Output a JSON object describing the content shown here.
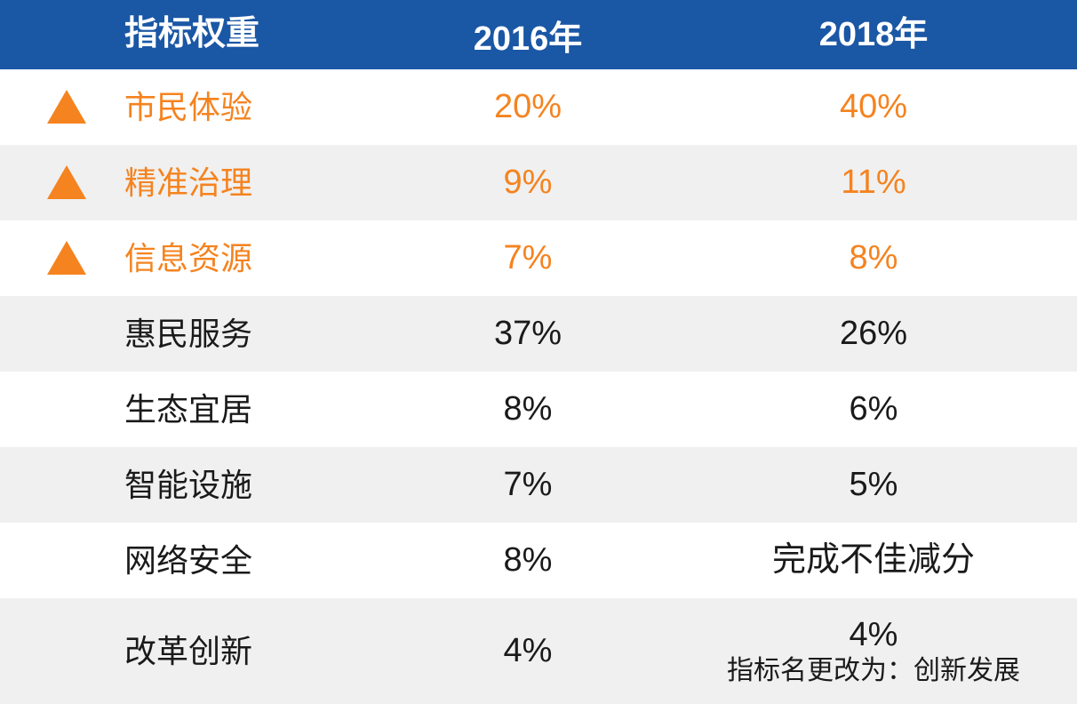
{
  "colors": {
    "header-bg": "#1A57A5",
    "highlight": "#F5831F",
    "row-alt-bg": "#F0F0F0",
    "ink": "#1A1A1A",
    "header-text": "#FFFFFF"
  },
  "table": {
    "headers": [
      "指标权重",
      "2016年",
      "2018年"
    ]
  },
  "icons": {
    "trend_up": "up-triangle-icon"
  },
  "chart_data": {
    "type": "table",
    "title": "指标权重",
    "columns": [
      "指标权重",
      "2016年",
      "2018年"
    ],
    "legend_hint": "橙色上三角 = 权重上升指标",
    "rows": [
      {
        "indicator": "市民体验",
        "y2016": "20%",
        "y2018": "40%",
        "trend_up": true
      },
      {
        "indicator": "精准治理",
        "y2016": "9%",
        "y2018": "11%",
        "trend_up": true
      },
      {
        "indicator": "信息资源",
        "y2016": "7%",
        "y2018": "8%",
        "trend_up": true
      },
      {
        "indicator": "惠民服务",
        "y2016": "37%",
        "y2018": "26%",
        "trend_up": false
      },
      {
        "indicator": "生态宜居",
        "y2016": "8%",
        "y2018": "6%",
        "trend_up": false
      },
      {
        "indicator": "智能设施",
        "y2016": "7%",
        "y2018": "5%",
        "trend_up": false
      },
      {
        "indicator": "网络安全",
        "y2016": "8%",
        "y2018": "完成不佳减分",
        "trend_up": false
      },
      {
        "indicator": "改革创新",
        "y2016": "4%",
        "y2018": "4%",
        "y2018_note": "指标名更改为：创新发展",
        "trend_up": false
      }
    ]
  }
}
